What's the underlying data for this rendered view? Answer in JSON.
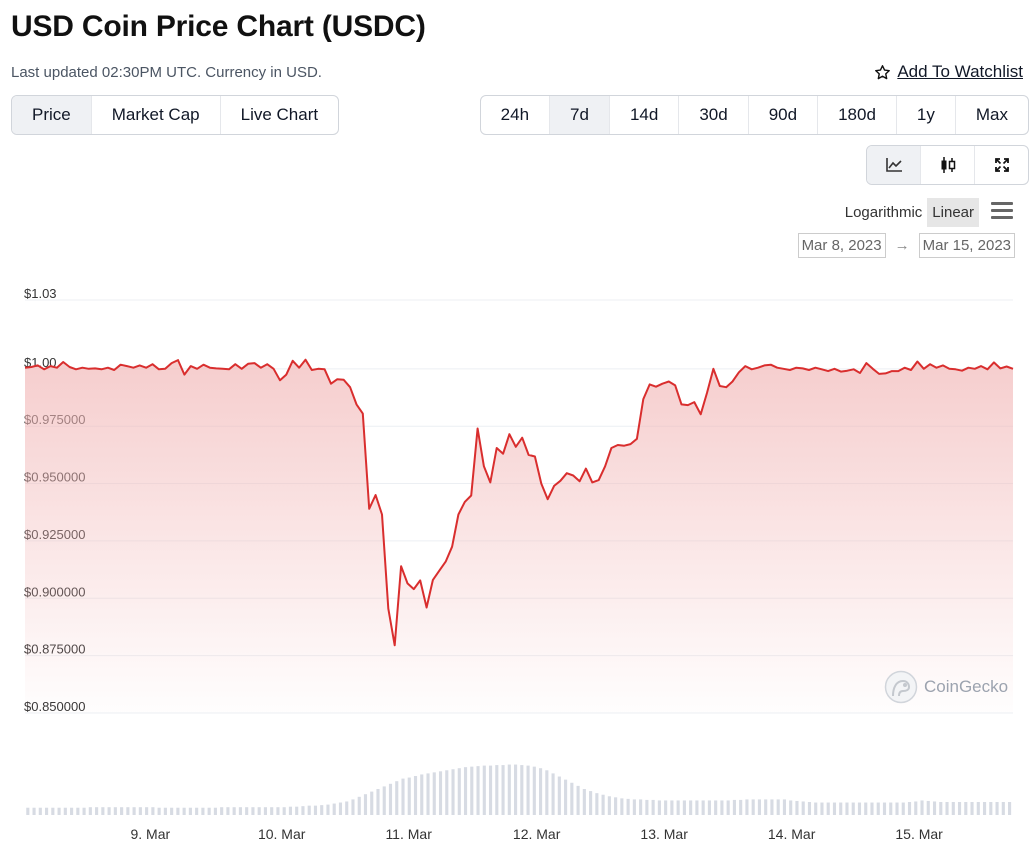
{
  "header": {
    "title": "USD Coin Price Chart (USDC)",
    "subtitle": "Last updated 02:30PM UTC. Currency in USD.",
    "watchlist_label": "Add To Watchlist"
  },
  "tabs": [
    {
      "label": "Price",
      "active": true
    },
    {
      "label": "Market Cap",
      "active": false
    },
    {
      "label": "Live Chart",
      "active": false
    }
  ],
  "ranges": [
    {
      "label": "24h",
      "active": false
    },
    {
      "label": "7d",
      "active": true
    },
    {
      "label": "14d",
      "active": false
    },
    {
      "label": "30d",
      "active": false
    },
    {
      "label": "90d",
      "active": false
    },
    {
      "label": "180d",
      "active": false
    },
    {
      "label": "1y",
      "active": false
    },
    {
      "label": "Max",
      "active": false
    }
  ],
  "views": [
    {
      "icon": "line-chart-icon",
      "active": true
    },
    {
      "icon": "candlestick-icon",
      "active": false
    },
    {
      "icon": "expand-icon",
      "active": false
    }
  ],
  "scale": {
    "logarithmic": "Logarithmic",
    "linear": "Linear",
    "active": "linear"
  },
  "dates": {
    "from": "Mar 8, 2023",
    "to": "Mar 15, 2023",
    "arrow": "→"
  },
  "watermark": "CoinGecko",
  "colors": {
    "line": "#d92e2e",
    "volume": "#d7dbe3",
    "grid": "#eceff3",
    "active_bg": "#eff1f4"
  },
  "chart_data": {
    "type": "line",
    "title": "",
    "xlabel": "",
    "ylabel": "",
    "x_range": [
      8.0,
      15.45
    ],
    "ylim": [
      0.85,
      1.03
    ],
    "grid": true,
    "yticks": [
      {
        "value": 1.03,
        "label": "$1.03"
      },
      {
        "value": 1.0,
        "label": "$1.00"
      },
      {
        "value": 0.975,
        "label": "$0.975000"
      },
      {
        "value": 0.95,
        "label": "$0.950000"
      },
      {
        "value": 0.925,
        "label": "$0.925000"
      },
      {
        "value": 0.9,
        "label": "$0.900000"
      },
      {
        "value": 0.875,
        "label": "$0.875000"
      },
      {
        "value": 0.85,
        "label": "$0.850000"
      }
    ],
    "xticks": [
      {
        "value": 9,
        "label": "9. Mar"
      },
      {
        "value": 10,
        "label": "10. Mar"
      },
      {
        "value": 11,
        "label": "11. Mar"
      },
      {
        "value": 12,
        "label": "12. Mar"
      },
      {
        "value": 13,
        "label": "13. Mar"
      },
      {
        "value": 14,
        "label": "14. Mar"
      },
      {
        "value": 15,
        "label": "15. Mar"
      }
    ],
    "series": [
      {
        "points": [
          [
            8.0,
            1.0005
          ],
          [
            8.05,
            1.0008
          ],
          [
            8.1,
            1.0015
          ],
          [
            8.15,
            0.9998
          ],
          [
            8.2,
            1.0012
          ],
          [
            8.25,
            1.0005
          ],
          [
            8.3,
            1.003
          ],
          [
            8.35,
            1.0008
          ],
          [
            8.4,
            0.9998
          ],
          [
            8.45,
            1.0005
          ],
          [
            8.5,
            1.0
          ],
          [
            8.55,
            1.0002
          ],
          [
            8.6,
            0.9998
          ],
          [
            8.65,
            1.0005
          ],
          [
            8.7,
            0.9995
          ],
          [
            8.75,
            1.0018
          ],
          [
            8.8,
            1.0012
          ],
          [
            8.85,
            1.0005
          ],
          [
            8.9,
            1.0015
          ],
          [
            8.95,
            1.0005
          ],
          [
            9.0,
            1.002
          ],
          [
            9.05,
            0.9998
          ],
          [
            9.1,
            1.0
          ],
          [
            9.15,
            1.0025
          ],
          [
            9.2,
            1.0038
          ],
          [
            9.25,
            0.9975
          ],
          [
            9.3,
            1.0012
          ],
          [
            9.35,
            1.0
          ],
          [
            9.4,
            1.0018
          ],
          [
            9.45,
            1.0005
          ],
          [
            9.5,
            1.0002
          ],
          [
            9.55,
            1.0
          ],
          [
            9.6,
            0.9998
          ],
          [
            9.65,
            1.002
          ],
          [
            9.7,
            1.0
          ],
          [
            9.75,
            1.0022
          ],
          [
            9.8,
            1.0025
          ],
          [
            9.85,
            1.0005
          ],
          [
            9.9,
            1.002
          ],
          [
            9.95,
            1.0
          ],
          [
            10.0,
            0.995
          ],
          [
            10.05,
            0.9975
          ],
          [
            10.1,
            1.0035
          ],
          [
            10.15,
            1.0005
          ],
          [
            10.2,
            1.004
          ],
          [
            10.25,
            0.9995
          ],
          [
            10.3,
            1.0
          ],
          [
            10.35,
            0.9998
          ],
          [
            10.4,
            0.9935
          ],
          [
            10.45,
            0.9955
          ],
          [
            10.5,
            0.9952
          ],
          [
            10.55,
            0.992
          ],
          [
            10.6,
            0.9845
          ],
          [
            10.65,
            0.9805
          ],
          [
            10.7,
            0.939
          ],
          [
            10.75,
            0.945
          ],
          [
            10.8,
            0.9365
          ],
          [
            10.85,
            0.8955
          ],
          [
            10.9,
            0.8795
          ],
          [
            10.95,
            0.914
          ],
          [
            11.0,
            0.9065
          ],
          [
            11.05,
            0.904
          ],
          [
            11.1,
            0.9078
          ],
          [
            11.15,
            0.896
          ],
          [
            11.2,
            0.908
          ],
          [
            11.25,
            0.912
          ],
          [
            11.3,
            0.916
          ],
          [
            11.35,
            0.9225
          ],
          [
            11.4,
            0.9365
          ],
          [
            11.45,
            0.942
          ],
          [
            11.5,
            0.9448
          ],
          [
            11.55,
            0.974
          ],
          [
            11.6,
            0.9575
          ],
          [
            11.65,
            0.9505
          ],
          [
            11.7,
            0.9655
          ],
          [
            11.75,
            0.963
          ],
          [
            11.8,
            0.9715
          ],
          [
            11.85,
            0.966
          ],
          [
            11.9,
            0.97
          ],
          [
            11.95,
            0.9625
          ],
          [
            12.0,
            0.9618
          ],
          [
            12.05,
            0.95
          ],
          [
            12.1,
            0.9432
          ],
          [
            12.15,
            0.949
          ],
          [
            12.2,
            0.9512
          ],
          [
            12.25,
            0.9545
          ],
          [
            12.3,
            0.9535
          ],
          [
            12.35,
            0.951
          ],
          [
            12.4,
            0.9565
          ],
          [
            12.45,
            0.9505
          ],
          [
            12.5,
            0.9515
          ],
          [
            12.55,
            0.9575
          ],
          [
            12.6,
            0.9655
          ],
          [
            12.65,
            0.9668
          ],
          [
            12.7,
            0.9665
          ],
          [
            12.75,
            0.9672
          ],
          [
            12.8,
            0.9695
          ],
          [
            12.85,
            0.9868
          ],
          [
            12.9,
            0.9932
          ],
          [
            12.95,
            0.9922
          ],
          [
            13.0,
            0.9935
          ],
          [
            13.05,
            0.9945
          ],
          [
            13.1,
            0.9928
          ],
          [
            13.15,
            0.9845
          ],
          [
            13.2,
            0.9842
          ],
          [
            13.25,
            0.9855
          ],
          [
            13.3,
            0.9802
          ],
          [
            13.35,
            0.9895
          ],
          [
            13.4,
            1.0
          ],
          [
            13.45,
            0.9925
          ],
          [
            13.5,
            0.992
          ],
          [
            13.55,
            0.9945
          ],
          [
            13.6,
            0.9985
          ],
          [
            13.65,
            1.0012
          ],
          [
            13.7,
            0.9998
          ],
          [
            13.75,
            1.0005
          ],
          [
            13.8,
            1.0015
          ],
          [
            13.85,
            1.0018
          ],
          [
            13.9,
            1.0005
          ],
          [
            13.95,
            1.0
          ],
          [
            14.0,
            0.9995
          ],
          [
            14.05,
            1.0005
          ],
          [
            14.1,
            1.0002
          ],
          [
            14.15,
            0.9995
          ],
          [
            14.2,
            1.0005
          ],
          [
            14.25,
            0.9998
          ],
          [
            14.3,
            0.999
          ],
          [
            14.35,
            1.0
          ],
          [
            14.4,
            0.9988
          ],
          [
            14.45,
            0.9992
          ],
          [
            14.5,
            0.9998
          ],
          [
            14.55,
            0.9982
          ],
          [
            14.6,
            1.0025
          ],
          [
            14.65,
            1.0
          ],
          [
            14.7,
            0.9978
          ],
          [
            14.75,
            0.998
          ],
          [
            14.8,
            0.999
          ],
          [
            14.85,
            0.999
          ],
          [
            14.9,
            1.0005
          ],
          [
            14.95,
            0.9995
          ],
          [
            15.0,
            1.0032
          ],
          [
            15.05,
            1.0
          ],
          [
            15.1,
            1.002
          ],
          [
            15.15,
            1.0005
          ],
          [
            15.2,
            1.0015
          ],
          [
            15.25,
            1.0
          ],
          [
            15.3,
            0.9998
          ],
          [
            15.35,
            0.9992
          ],
          [
            15.4,
            1.0005
          ],
          [
            15.45,
            1.0
          ],
          [
            15.5,
            1.0012
          ],
          [
            15.55,
            0.9998
          ],
          [
            15.6,
            1.0028
          ],
          [
            15.65,
            1.0002
          ],
          [
            15.7,
            1.001
          ],
          [
            15.75,
            1.0
          ]
        ]
      }
    ],
    "volume": {
      "note_relative": true,
      "values": [
        0.14,
        0.14,
        0.14,
        0.14,
        0.14,
        0.14,
        0.14,
        0.14,
        0.14,
        0.14,
        0.15,
        0.15,
        0.15,
        0.15,
        0.15,
        0.15,
        0.15,
        0.15,
        0.15,
        0.15,
        0.15,
        0.14,
        0.14,
        0.14,
        0.14,
        0.14,
        0.14,
        0.14,
        0.14,
        0.14,
        0.14,
        0.15,
        0.15,
        0.15,
        0.15,
        0.15,
        0.15,
        0.15,
        0.15,
        0.15,
        0.15,
        0.15,
        0.16,
        0.16,
        0.17,
        0.18,
        0.18,
        0.19,
        0.2,
        0.22,
        0.24,
        0.26,
        0.3,
        0.35,
        0.4,
        0.45,
        0.5,
        0.55,
        0.6,
        0.65,
        0.7,
        0.72,
        0.75,
        0.78,
        0.8,
        0.82,
        0.84,
        0.86,
        0.88,
        0.9,
        0.92,
        0.93,
        0.94,
        0.95,
        0.95,
        0.96,
        0.96,
        0.97,
        0.97,
        0.96,
        0.95,
        0.93,
        0.9,
        0.86,
        0.8,
        0.74,
        0.68,
        0.62,
        0.56,
        0.5,
        0.46,
        0.42,
        0.39,
        0.36,
        0.34,
        0.32,
        0.31,
        0.3,
        0.3,
        0.29,
        0.29,
        0.28,
        0.28,
        0.28,
        0.28,
        0.28,
        0.28,
        0.28,
        0.28,
        0.28,
        0.28,
        0.28,
        0.28,
        0.29,
        0.29,
        0.3,
        0.3,
        0.3,
        0.3,
        0.3,
        0.3,
        0.3,
        0.28,
        0.27,
        0.26,
        0.25,
        0.24,
        0.24,
        0.24,
        0.24,
        0.24,
        0.24,
        0.24,
        0.24,
        0.24,
        0.24,
        0.24,
        0.24,
        0.24,
        0.24,
        0.24,
        0.25,
        0.26,
        0.28,
        0.27,
        0.26,
        0.25,
        0.25,
        0.25,
        0.25,
        0.25,
        0.25,
        0.25,
        0.25,
        0.25,
        0.25,
        0.25,
        0.25
      ]
    }
  }
}
